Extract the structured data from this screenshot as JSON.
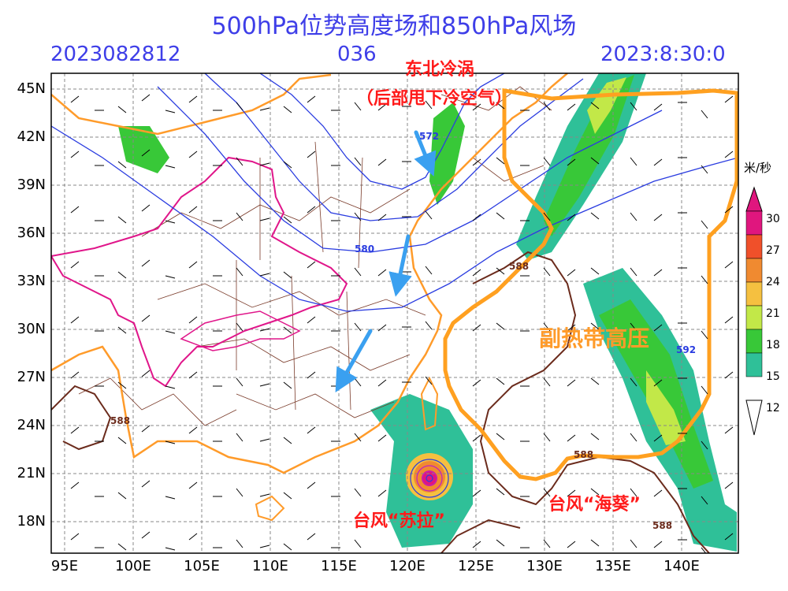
{
  "header": {
    "title": "500hPa位势高度场和850hPa风场",
    "init_time": "2023082812",
    "forecast_hour": "036",
    "valid_time": "2023:8:30:0"
  },
  "axes": {
    "lat_labels": [
      "45N",
      "42N",
      "39N",
      "36N",
      "33N",
      "30N",
      "27N",
      "24N",
      "21N",
      "18N"
    ],
    "lon_labels": [
      "95E",
      "100E",
      "105E",
      "110E",
      "115E",
      "120E",
      "125E",
      "130E",
      "135E",
      "140E"
    ]
  },
  "annotations": {
    "northeast_vortex": "东北冷涡",
    "cold_air_note": "（后部甩下冷空气）",
    "subtropical_high": "副热带高压",
    "typhoon_saola": "台风“苏拉”",
    "typhoon_haikui": "台风“海葵”"
  },
  "contour_labels": {
    "c572": "572",
    "c580": "580",
    "c588_a": "588",
    "c588_b": "588",
    "c588_c": "588",
    "c588_d": "588",
    "c592": "592"
  },
  "colorbar": {
    "unit": "米/秒",
    "ticks": [
      "30",
      "27",
      "24",
      "21",
      "18",
      "15",
      "12"
    ],
    "colors": [
      "#e0167e",
      "#f0502a",
      "#f08a30",
      "#f5c040",
      "#c2e848",
      "#38c838",
      "#2fc098"
    ]
  }
}
